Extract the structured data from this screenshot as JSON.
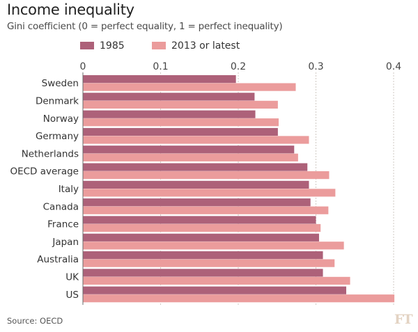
{
  "chart_data": {
    "type": "bar",
    "orientation": "horizontal",
    "title": "Income inequality",
    "subtitle": "Gini coefficient (0 = perfect equality, 1 = perfect inequality)",
    "xlabel": "",
    "ylabel": "",
    "xlim": [
      0,
      0.4
    ],
    "xticks": [
      0,
      0.1,
      0.2,
      0.3,
      0.4
    ],
    "xtick_labels": [
      "0",
      "0.1",
      "0.2",
      "0.3",
      "0.4"
    ],
    "grid": true,
    "legend_position": "top",
    "categories": [
      "Sweden",
      "Denmark",
      "Norway",
      "Germany",
      "Netherlands",
      "OECD average",
      "Italy",
      "Canada",
      "France",
      "Japan",
      "Australia",
      "UK",
      "US"
    ],
    "series": [
      {
        "name": "1985",
        "color": "#ad6179",
        "values": [
          0.197,
          0.221,
          0.222,
          0.251,
          0.272,
          0.289,
          0.291,
          0.293,
          0.3,
          0.304,
          0.309,
          0.309,
          0.339
        ]
      },
      {
        "name": "2013 or latest",
        "color": "#eb9c9c",
        "values": [
          0.274,
          0.251,
          0.252,
          0.291,
          0.277,
          0.317,
          0.325,
          0.316,
          0.306,
          0.336,
          0.324,
          0.344,
          0.401
        ]
      }
    ],
    "source": "Source: OECD",
    "logo": "FT"
  }
}
